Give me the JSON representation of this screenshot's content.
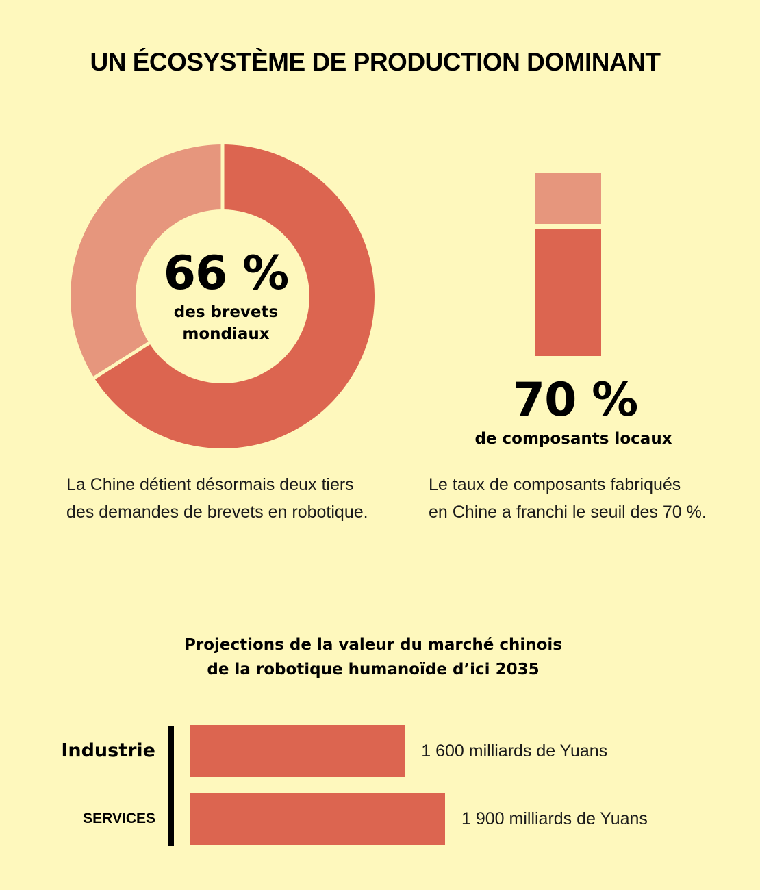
{
  "title": "UN ÉCOSYSTÈME DE PRODUCTION DOMINANT",
  "colors": {
    "background": "#fef8bd",
    "primary": "#dc6550",
    "light": "#e6967d"
  },
  "patents": {
    "value_label": "66 %",
    "label_line1": "des brevets",
    "label_line2": "mondiaux",
    "description_line1": "La Chine détient désormais deux tiers",
    "description_line2": "des demandes de brevets en robotique."
  },
  "components": {
    "value_label": "70 %",
    "label": "de composants locaux",
    "description_line1": "Le taux de composants fabriqués",
    "description_line2": "en Chine a franchi le seuil des 70 %."
  },
  "market": {
    "title_line1": "Projections de la valeur du marché chinois",
    "title_line2": "de la robotique humanoïde d’ici 2035"
  },
  "chart_data": [
    {
      "type": "pie",
      "categories": [
        "",
        ""
      ],
      "values": [
        66,
        34
      ],
      "colors": [
        "#dc6550",
        "#e6967d"
      ]
    },
    {
      "type": "bar",
      "orientation": "vertical-stacked",
      "categories": [
        ""
      ],
      "series": [
        {
          "values": [
            70
          ],
          "color": "#dc6550"
        },
        {
          "values": [
            30
          ],
          "color": "#e6967d"
        }
      ],
      "ylim": [
        0,
        100
      ]
    },
    {
      "type": "bar",
      "orientation": "horizontal",
      "categories": [
        "Industrie",
        "SERVICES"
      ],
      "values": [
        1600,
        1900
      ],
      "value_labels": [
        "1 600 milliards de Yuans",
        "1 900 milliards de Yuans"
      ],
      "xlim": [
        0,
        1900
      ]
    }
  ]
}
